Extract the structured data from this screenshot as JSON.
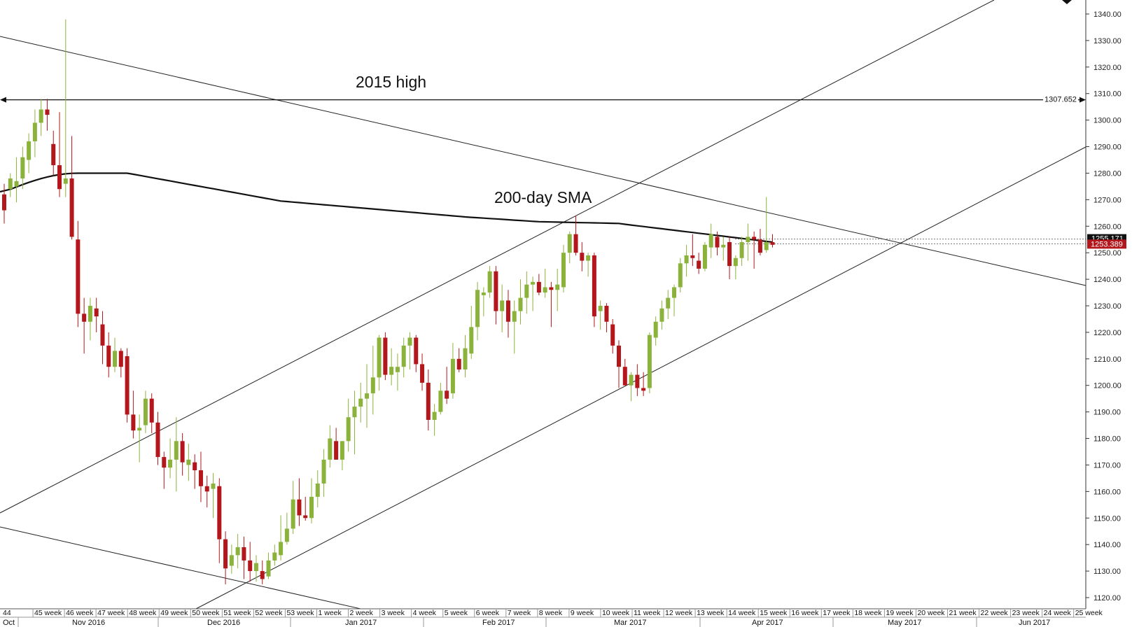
{
  "chart_data": {
    "type": "candlestick",
    "y_axis": {
      "ticks": [
        "1340.00",
        "1330.00",
        "1320.00",
        "1310.00",
        "1300.00",
        "1290.00",
        "1280.00",
        "1270.00",
        "1260.00",
        "1250.00",
        "1240.00",
        "1230.00",
        "1220.00",
        "1210.00",
        "1200.00",
        "1190.00",
        "1180.00",
        "1170.00",
        "1160.00",
        "1150.00",
        "1140.00",
        "1130.00",
        "1120.00"
      ],
      "tick_values": [
        1340,
        1330,
        1320,
        1310,
        1300,
        1290,
        1280,
        1270,
        1260,
        1250,
        1240,
        1230,
        1220,
        1210,
        1200,
        1190,
        1180,
        1170,
        1160,
        1150,
        1140,
        1130,
        1120
      ],
      "range": [
        1115.5,
        1345
      ]
    },
    "x_axis": {
      "weeks": [
        "44",
        "45 week",
        "46 week",
        "47 week",
        "48 week",
        "49 week",
        "50 week",
        "51 week",
        "52 week",
        "53 week",
        "1 week",
        "2 week",
        "3 week",
        "4 week",
        "5 week",
        "6 week",
        "7 week",
        "8 week",
        "9 week",
        "10 week",
        "11 week",
        "12 week",
        "13 week",
        "14 week",
        "15 week",
        "16 week",
        "17 week",
        "18 week",
        "19 week",
        "20 week",
        "21 week",
        "22 week",
        "23 week",
        "24 week",
        "25 week"
      ],
      "months": [
        "Oct",
        "Nov 2016",
        "Dec 2016",
        "Jan 2017",
        "Feb 2017",
        "Mar 2017",
        "Apr 2017",
        "May 2017",
        "Jun 2017"
      ]
    },
    "annotations": {
      "high_label": "2015 high",
      "sma_label": "200-day SMA",
      "high_value": "1307.652",
      "current_price": "1253.389",
      "hidden_price": "1255.171"
    },
    "levels": {
      "high": 1307.652,
      "current": 1253.389,
      "hidden": 1255.171
    },
    "colors": {
      "bull": "#8bb33c",
      "bear": "#b3161b",
      "sma": "#111111",
      "trendline": "#222222",
      "price_tag": "#b3161b",
      "price_tag_dark": "#111111"
    },
    "candles": [
      [
        1272,
        1276,
        1261,
        1266
      ],
      [
        1274,
        1280,
        1271,
        1278
      ],
      [
        1275,
        1286,
        1269,
        1277
      ],
      [
        1278,
        1290,
        1274,
        1286
      ],
      [
        1285,
        1295,
        1280,
        1292
      ],
      [
        1292,
        1304,
        1286,
        1299
      ],
      [
        1299,
        1308,
        1294,
        1304
      ],
      [
        1304,
        1308,
        1296,
        1302
      ],
      [
        1291,
        1296,
        1279,
        1283
      ],
      [
        1283,
        1303,
        1271,
        1274
      ],
      [
        1276,
        1338,
        1271,
        1278
      ],
      [
        1278,
        1294,
        1255,
        1256
      ],
      [
        1255,
        1262,
        1222,
        1227
      ],
      [
        1227,
        1233,
        1212,
        1224
      ],
      [
        1224,
        1233,
        1217,
        1230
      ],
      [
        1229,
        1233,
        1220,
        1226
      ],
      [
        1223,
        1228,
        1208,
        1215
      ],
      [
        1215,
        1220,
        1203,
        1207
      ],
      [
        1207,
        1218,
        1205,
        1213
      ],
      [
        1213,
        1214,
        1203,
        1207
      ],
      [
        1211,
        1214,
        1186,
        1189
      ],
      [
        1189,
        1198,
        1180,
        1183
      ],
      [
        1183,
        1189,
        1171,
        1184
      ],
      [
        1185,
        1198,
        1182,
        1195
      ],
      [
        1195,
        1197,
        1182,
        1186
      ],
      [
        1186,
        1190,
        1170,
        1173
      ],
      [
        1173,
        1175,
        1161,
        1169
      ],
      [
        1169,
        1180,
        1165,
        1172
      ],
      [
        1172,
        1188,
        1160,
        1179
      ],
      [
        1179,
        1182,
        1166,
        1171
      ],
      [
        1170,
        1178,
        1164,
        1172
      ],
      [
        1171,
        1174,
        1161,
        1168
      ],
      [
        1168,
        1175,
        1156,
        1162
      ],
      [
        1162,
        1166,
        1154,
        1160
      ],
      [
        1161,
        1167,
        1150,
        1163
      ],
      [
        1162,
        1165,
        1133,
        1142
      ],
      [
        1142,
        1145,
        1125,
        1131
      ],
      [
        1132,
        1140,
        1129,
        1136
      ],
      [
        1136,
        1144,
        1131,
        1139
      ],
      [
        1139,
        1143,
        1127,
        1134
      ],
      [
        1134,
        1141,
        1126,
        1130
      ],
      [
        1130,
        1136,
        1126,
        1133
      ],
      [
        1130,
        1134,
        1125,
        1127
      ],
      [
        1128,
        1137,
        1127,
        1134
      ],
      [
        1134,
        1140,
        1132,
        1137
      ],
      [
        1136,
        1151,
        1134,
        1141
      ],
      [
        1141,
        1152,
        1140,
        1146
      ],
      [
        1146,
        1164,
        1144,
        1157
      ],
      [
        1157,
        1165,
        1147,
        1151
      ],
      [
        1151,
        1158,
        1149,
        1150
      ],
      [
        1150,
        1165,
        1148,
        1158
      ],
      [
        1158,
        1168,
        1154,
        1163
      ],
      [
        1163,
        1176,
        1158,
        1172
      ],
      [
        1172,
        1185,
        1169,
        1180
      ],
      [
        1179,
        1184,
        1172,
        1172
      ],
      [
        1172,
        1179,
        1168,
        1179
      ],
      [
        1179,
        1195,
        1175,
        1188
      ],
      [
        1188,
        1198,
        1174,
        1192
      ],
      [
        1192,
        1201,
        1186,
        1195
      ],
      [
        1195,
        1208,
        1184,
        1197
      ],
      [
        1197,
        1215,
        1189,
        1203
      ],
      [
        1203,
        1219,
        1198,
        1218
      ],
      [
        1218,
        1220,
        1202,
        1204
      ],
      [
        1204,
        1214,
        1200,
        1207
      ],
      [
        1205,
        1212,
        1198,
        1207
      ],
      [
        1207,
        1218,
        1203,
        1215
      ],
      [
        1215,
        1220,
        1206,
        1218
      ],
      [
        1218,
        1219,
        1205,
        1208
      ],
      [
        1208,
        1212,
        1198,
        1201
      ],
      [
        1201,
        1206,
        1183,
        1187
      ],
      [
        1187,
        1193,
        1181,
        1190
      ],
      [
        1190,
        1201,
        1189,
        1198
      ],
      [
        1198,
        1207,
        1193,
        1195
      ],
      [
        1197,
        1216,
        1195,
        1210
      ],
      [
        1210,
        1214,
        1205,
        1206
      ],
      [
        1206,
        1219,
        1203,
        1214
      ],
      [
        1212,
        1230,
        1210,
        1222
      ],
      [
        1222,
        1239,
        1217,
        1236
      ],
      [
        1234,
        1237,
        1226,
        1235
      ],
      [
        1235,
        1245,
        1233,
        1243
      ],
      [
        1243,
        1245,
        1223,
        1228
      ],
      [
        1228,
        1238,
        1220,
        1232
      ],
      [
        1232,
        1236,
        1218,
        1224
      ],
      [
        1224,
        1232,
        1212,
        1228
      ],
      [
        1228,
        1240,
        1223,
        1233
      ],
      [
        1233,
        1243,
        1227,
        1238
      ],
      [
        1238,
        1241,
        1228,
        1239
      ],
      [
        1239,
        1242,
        1234,
        1235
      ],
      [
        1235,
        1244,
        1233,
        1237
      ],
      [
        1237,
        1239,
        1222,
        1236
      ],
      [
        1236,
        1244,
        1228,
        1238
      ],
      [
        1237,
        1253,
        1235,
        1250
      ],
      [
        1250,
        1258,
        1246,
        1257
      ],
      [
        1257,
        1264,
        1249,
        1250
      ],
      [
        1250,
        1254,
        1243,
        1247
      ],
      [
        1247,
        1250,
        1241,
        1249
      ],
      [
        1249,
        1250,
        1222,
        1226
      ],
      [
        1228,
        1232,
        1221,
        1230
      ],
      [
        1230,
        1231,
        1220,
        1224
      ],
      [
        1223,
        1225,
        1212,
        1215
      ],
      [
        1215,
        1217,
        1199,
        1207
      ],
      [
        1207,
        1210,
        1200,
        1200
      ],
      [
        1200,
        1205,
        1194,
        1204
      ],
      [
        1204,
        1208,
        1196,
        1199
      ],
      [
        1199,
        1205,
        1196,
        1198
      ],
      [
        1199,
        1220,
        1197,
        1219
      ],
      [
        1218,
        1226,
        1215,
        1224
      ],
      [
        1224,
        1232,
        1221,
        1229
      ],
      [
        1229,
        1236,
        1225,
        1233
      ],
      [
        1233,
        1238,
        1226,
        1237
      ],
      [
        1237,
        1248,
        1235,
        1246
      ],
      [
        1246,
        1253,
        1241,
        1249
      ],
      [
        1249,
        1257,
        1245,
        1248
      ],
      [
        1247,
        1250,
        1242,
        1244
      ],
      [
        1244,
        1254,
        1243,
        1253
      ],
      [
        1252,
        1261,
        1248,
        1257
      ],
      [
        1256,
        1258,
        1249,
        1252
      ],
      [
        1252,
        1256,
        1247,
        1253
      ],
      [
        1254,
        1256,
        1240,
        1245
      ],
      [
        1245,
        1249,
        1240,
        1248
      ],
      [
        1248,
        1256,
        1245,
        1254
      ],
      [
        1254,
        1261,
        1247,
        1256
      ],
      [
        1256,
        1258,
        1244,
        1255
      ],
      [
        1255,
        1259,
        1249,
        1250
      ],
      [
        1251,
        1271,
        1250,
        1254
      ],
      [
        1254,
        1257,
        1252,
        1253
      ]
    ]
  }
}
